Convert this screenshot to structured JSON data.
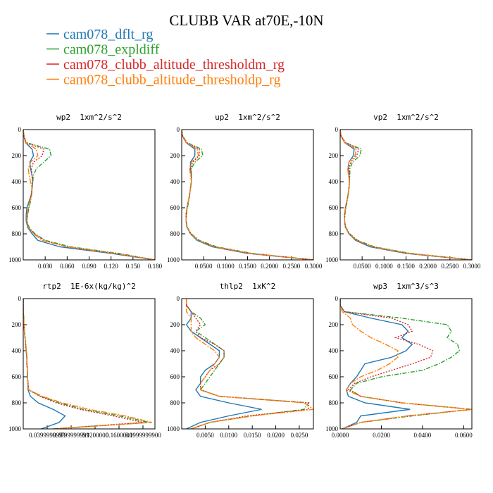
{
  "title": "CLUBB VAR at70E,-10N",
  "legend": [
    {
      "name": "cam078_dflt_rg",
      "color": "#1f77b4",
      "style": "solid"
    },
    {
      "name": "cam078_expldiff",
      "color": "#2ca02c",
      "style": "dashdot"
    },
    {
      "name": "cam078_clubb_altitude_thresholdm_rg",
      "color": "#d62728",
      "style": "dotdash"
    },
    {
      "name": "cam078_clubb_altitude_thresholdp_rg",
      "color": "#ff7f0e",
      "style": "longdash"
    }
  ],
  "chart_data": [
    {
      "type": "line",
      "title": "wp2  1xm^2/s^2",
      "y": [
        0,
        50,
        100,
        150,
        200,
        250,
        300,
        350,
        400,
        450,
        500,
        550,
        600,
        650,
        700,
        750,
        800,
        850,
        900,
        950,
        1000
      ],
      "ylim": [
        0,
        1000
      ],
      "y_inverted": true,
      "yticks": [
        0,
        200,
        400,
        600,
        800,
        1000
      ],
      "xlim": [
        0,
        0.18
      ],
      "xticks": [
        {
          "value": 0.03,
          "label": "0.030"
        },
        {
          "value": 0.06,
          "label": "0.060"
        },
        {
          "value": 0.09,
          "label": "0.090"
        },
        {
          "value": 0.12,
          "label": "0.120"
        },
        {
          "value": 0.15,
          "label": "0.150"
        },
        {
          "value": 0.18,
          "label": "0.180"
        }
      ],
      "series": [
        {
          "values": [
            0,
            0.001,
            0.003,
            0.012,
            0.014,
            0.009,
            0.01,
            0.012,
            0.013,
            0.012,
            0.011,
            0.008,
            0.005,
            0.004,
            0.004,
            0.006,
            0.012,
            0.02,
            0.05,
            0.12,
            0.18
          ]
        },
        {
          "values": [
            0,
            0.001,
            0.004,
            0.036,
            0.038,
            0.028,
            0.018,
            0.014,
            0.013,
            0.012,
            0.011,
            0.01,
            0.008,
            0.006,
            0.005,
            0.008,
            0.016,
            0.03,
            0.065,
            0.13,
            0.18
          ]
        },
        {
          "values": [
            0,
            0.001,
            0.004,
            0.028,
            0.026,
            0.014,
            0.011,
            0.012,
            0.013,
            0.012,
            0.011,
            0.009,
            0.007,
            0.006,
            0.005,
            0.007,
            0.015,
            0.028,
            0.06,
            0.125,
            0.18
          ]
        },
        {
          "values": [
            0,
            0.001,
            0.003,
            0.018,
            0.02,
            0.01,
            0.007,
            0.008,
            0.01,
            0.012,
            0.012,
            0.009,
            0.007,
            0.005,
            0.005,
            0.007,
            0.014,
            0.026,
            0.06,
            0.125,
            0.18
          ]
        }
      ]
    },
    {
      "type": "line",
      "title": "up2  1xm^2/s^2",
      "y": [
        0,
        50,
        100,
        150,
        200,
        250,
        300,
        350,
        400,
        450,
        500,
        550,
        600,
        650,
        700,
        750,
        800,
        850,
        900,
        950,
        1000
      ],
      "ylim": [
        0,
        1000
      ],
      "y_inverted": true,
      "yticks": [
        0,
        200,
        400,
        600,
        800,
        1000
      ],
      "xlim": [
        0,
        0.3
      ],
      "xticks": [
        {
          "value": 0.05,
          "label": "0.0500"
        },
        {
          "value": 0.1,
          "label": "0.1000"
        },
        {
          "value": 0.15,
          "label": "0.1500"
        },
        {
          "value": 0.2,
          "label": "0.2000"
        },
        {
          "value": 0.25,
          "label": "0.2500"
        },
        {
          "value": 0.3,
          "label": "0.3000"
        }
      ],
      "series": [
        {
          "values": [
            0,
            0.002,
            0.01,
            0.03,
            0.03,
            0.02,
            0.02,
            0.022,
            0.022,
            0.02,
            0.018,
            0.015,
            0.012,
            0.01,
            0.01,
            0.012,
            0.02,
            0.035,
            0.07,
            0.15,
            0.3
          ]
        },
        {
          "values": [
            0,
            0.002,
            0.012,
            0.045,
            0.048,
            0.03,
            0.022,
            0.022,
            0.022,
            0.02,
            0.018,
            0.016,
            0.013,
            0.011,
            0.01,
            0.013,
            0.022,
            0.04,
            0.08,
            0.16,
            0.3
          ]
        },
        {
          "values": [
            0,
            0.002,
            0.012,
            0.04,
            0.04,
            0.025,
            0.02,
            0.022,
            0.022,
            0.02,
            0.018,
            0.015,
            0.012,
            0.01,
            0.01,
            0.012,
            0.021,
            0.038,
            0.075,
            0.155,
            0.3
          ]
        },
        {
          "values": [
            0,
            0.002,
            0.01,
            0.035,
            0.038,
            0.022,
            0.018,
            0.02,
            0.022,
            0.02,
            0.018,
            0.015,
            0.012,
            0.01,
            0.01,
            0.012,
            0.021,
            0.038,
            0.075,
            0.155,
            0.3
          ]
        }
      ]
    },
    {
      "type": "line",
      "title": "vp2  1xm^2/s^2",
      "y": [
        0,
        50,
        100,
        150,
        200,
        250,
        300,
        350,
        400,
        450,
        500,
        550,
        600,
        650,
        700,
        750,
        800,
        850,
        900,
        950,
        1000
      ],
      "ylim": [
        0,
        1000
      ],
      "y_inverted": true,
      "yticks": [
        0,
        200,
        400,
        600,
        800,
        1000
      ],
      "xlim": [
        0,
        0.3
      ],
      "xticks": [
        {
          "value": 0.05,
          "label": "0.0500"
        },
        {
          "value": 0.1,
          "label": "0.1000"
        },
        {
          "value": 0.15,
          "label": "0.1500"
        },
        {
          "value": 0.2,
          "label": "0.2000"
        },
        {
          "value": 0.25,
          "label": "0.2500"
        },
        {
          "value": 0.3,
          "label": "0.3000"
        }
      ],
      "series": [
        {
          "values": [
            0,
            0.002,
            0.01,
            0.032,
            0.03,
            0.02,
            0.018,
            0.02,
            0.021,
            0.02,
            0.018,
            0.015,
            0.012,
            0.01,
            0.01,
            0.012,
            0.02,
            0.035,
            0.068,
            0.15,
            0.3
          ]
        },
        {
          "values": [
            0,
            0.002,
            0.012,
            0.048,
            0.045,
            0.028,
            0.022,
            0.022,
            0.021,
            0.02,
            0.018,
            0.016,
            0.013,
            0.011,
            0.01,
            0.013,
            0.022,
            0.04,
            0.078,
            0.16,
            0.3
          ]
        },
        {
          "values": [
            0,
            0.002,
            0.012,
            0.042,
            0.038,
            0.024,
            0.02,
            0.021,
            0.021,
            0.02,
            0.018,
            0.015,
            0.012,
            0.01,
            0.01,
            0.012,
            0.021,
            0.038,
            0.074,
            0.155,
            0.3
          ]
        },
        {
          "values": [
            0,
            0.002,
            0.01,
            0.036,
            0.034,
            0.02,
            0.017,
            0.019,
            0.021,
            0.02,
            0.018,
            0.015,
            0.012,
            0.01,
            0.01,
            0.012,
            0.021,
            0.038,
            0.074,
            0.155,
            0.3
          ]
        }
      ]
    },
    {
      "type": "line",
      "title": "rtp2  1E-6x(kg/kg)^2",
      "y": [
        0,
        50,
        100,
        150,
        200,
        250,
        300,
        350,
        400,
        450,
        500,
        550,
        600,
        650,
        700,
        750,
        800,
        850,
        900,
        950,
        1000
      ],
      "ylim": [
        0,
        1000
      ],
      "y_inverted": true,
      "yticks": [
        0,
        200,
        400,
        600,
        800,
        1000
      ],
      "xlim": [
        0,
        0.22
      ],
      "xticks": [
        {
          "value": 0.04,
          "label": "0.0399999999"
        },
        {
          "value": 0.08,
          "label": "0.0799999999"
        },
        {
          "value": 0.12,
          "label": "0.1200000"
        },
        {
          "value": 0.16,
          "label": "0.1600000"
        },
        {
          "value": 0.2,
          "label": "0.1999999900"
        }
      ],
      "series": [
        {
          "values": [
            0,
            0,
            0,
            0.001,
            0.001,
            0.002,
            0.003,
            0.004,
            0.005,
            0.006,
            0.006,
            0.007,
            0.007,
            0.008,
            0.008,
            0.012,
            0.025,
            0.05,
            0.07,
            0.06,
            0.03
          ]
        },
        {
          "values": [
            0,
            0,
            0,
            0.001,
            0.001,
            0.002,
            0.003,
            0.004,
            0.005,
            0.006,
            0.006,
            0.007,
            0.007,
            0.008,
            0.009,
            0.03,
            0.06,
            0.1,
            0.16,
            0.21,
            0.05
          ]
        },
        {
          "values": [
            0,
            0,
            0,
            0.001,
            0.001,
            0.002,
            0.003,
            0.004,
            0.005,
            0.006,
            0.006,
            0.007,
            0.007,
            0.008,
            0.009,
            0.028,
            0.055,
            0.095,
            0.15,
            0.2,
            0.05
          ]
        },
        {
          "values": [
            0,
            0,
            0,
            0.001,
            0.001,
            0.002,
            0.003,
            0.004,
            0.005,
            0.006,
            0.006,
            0.007,
            0.007,
            0.008,
            0.009,
            0.032,
            0.065,
            0.11,
            0.17,
            0.215,
            0.05
          ]
        }
      ]
    },
    {
      "type": "line",
      "title": "thlp2  1xK^2",
      "y": [
        0,
        50,
        100,
        150,
        200,
        250,
        300,
        350,
        400,
        450,
        500,
        550,
        600,
        650,
        700,
        750,
        800,
        850,
        900,
        950,
        1000
      ],
      "ylim": [
        0,
        1000
      ],
      "y_inverted": true,
      "yticks": [
        0,
        200,
        400,
        600,
        800,
        1000
      ],
      "xlim": [
        0,
        0.028
      ],
      "xticks": [
        {
          "value": 0.005,
          "label": "0.0050"
        },
        {
          "value": 0.01,
          "label": "0.0100"
        },
        {
          "value": 0.015,
          "label": "0.0150"
        },
        {
          "value": 0.02,
          "label": "0.0200"
        },
        {
          "value": 0.025,
          "label": "0.0250"
        }
      ],
      "series": [
        {
          "values": [
            0.001,
            0.001,
            0.002,
            0.002,
            0.001,
            0.002,
            0.004,
            0.006,
            0.008,
            0.008,
            0.007,
            0.005,
            0.004,
            0.004,
            0.003,
            0.004,
            0.01,
            0.017,
            0.01,
            0.004,
            0.001
          ]
        },
        {
          "values": [
            0.001,
            0.001,
            0.002,
            0.004,
            0.005,
            0.003,
            0.005,
            0.007,
            0.009,
            0.009,
            0.008,
            0.007,
            0.006,
            0.005,
            0.004,
            0.008,
            0.027,
            0.026,
            0.015,
            0.006,
            0.002
          ]
        },
        {
          "values": [
            0.001,
            0.001,
            0.002,
            0.003,
            0.004,
            0.003,
            0.004,
            0.007,
            0.009,
            0.009,
            0.008,
            0.006,
            0.005,
            0.004,
            0.004,
            0.008,
            0.027,
            0.027,
            0.014,
            0.006,
            0.002
          ]
        },
        {
          "values": [
            0.001,
            0.001,
            0.001,
            0.002,
            0.002,
            0.002,
            0.003,
            0.005,
            0.007,
            0.008,
            0.007,
            0.006,
            0.005,
            0.004,
            0.004,
            0.008,
            0.026,
            0.028,
            0.015,
            0.006,
            0.002
          ]
        }
      ]
    },
    {
      "type": "line",
      "title": "wp3  1xm^3/s^3",
      "y": [
        0,
        50,
        100,
        150,
        200,
        250,
        300,
        350,
        400,
        450,
        500,
        550,
        600,
        650,
        700,
        750,
        800,
        850,
        900,
        950,
        1000
      ],
      "ylim": [
        0,
        1000
      ],
      "y_inverted": true,
      "yticks": [
        0,
        200,
        400,
        600,
        800,
        1000
      ],
      "xlim": [
        0,
        0.064
      ],
      "xticks": [
        {
          "value": 0,
          "label": "0.0000"
        },
        {
          "value": 0.02,
          "label": "0.0200"
        },
        {
          "value": 0.04,
          "label": "0.0400"
        },
        {
          "value": 0.06,
          "label": "0.0600"
        }
      ],
      "series": [
        {
          "values": [
            0,
            0,
            0.002,
            0.015,
            0.03,
            0.033,
            0.03,
            0.035,
            0.032,
            0.025,
            0.012,
            0.01,
            0.008,
            0.005,
            0.003,
            0.004,
            0.012,
            0.034,
            0.01,
            0.008,
            0.001
          ]
        },
        {
          "values": [
            0,
            0,
            0.002,
            0.03,
            0.052,
            0.054,
            0.052,
            0.057,
            0.058,
            0.054,
            0.048,
            0.04,
            0.02,
            0.008,
            0.005,
            0.01,
            0.03,
            0.064,
            0.035,
            0.01,
            0.001
          ]
        },
        {
          "values": [
            0,
            0,
            0.002,
            0.025,
            0.033,
            0.035,
            0.027,
            0.038,
            0.045,
            0.044,
            0.035,
            0.025,
            0.015,
            0.007,
            0.004,
            0.01,
            0.03,
            0.064,
            0.033,
            0.01,
            0.001
          ]
        },
        {
          "values": [
            0,
            0,
            0.001,
            0.005,
            0.006,
            0.01,
            0.015,
            0.022,
            0.028,
            0.028,
            0.024,
            0.018,
            0.01,
            0.005,
            0.003,
            0.01,
            0.03,
            0.064,
            0.033,
            0.01,
            0.001
          ]
        }
      ]
    }
  ]
}
